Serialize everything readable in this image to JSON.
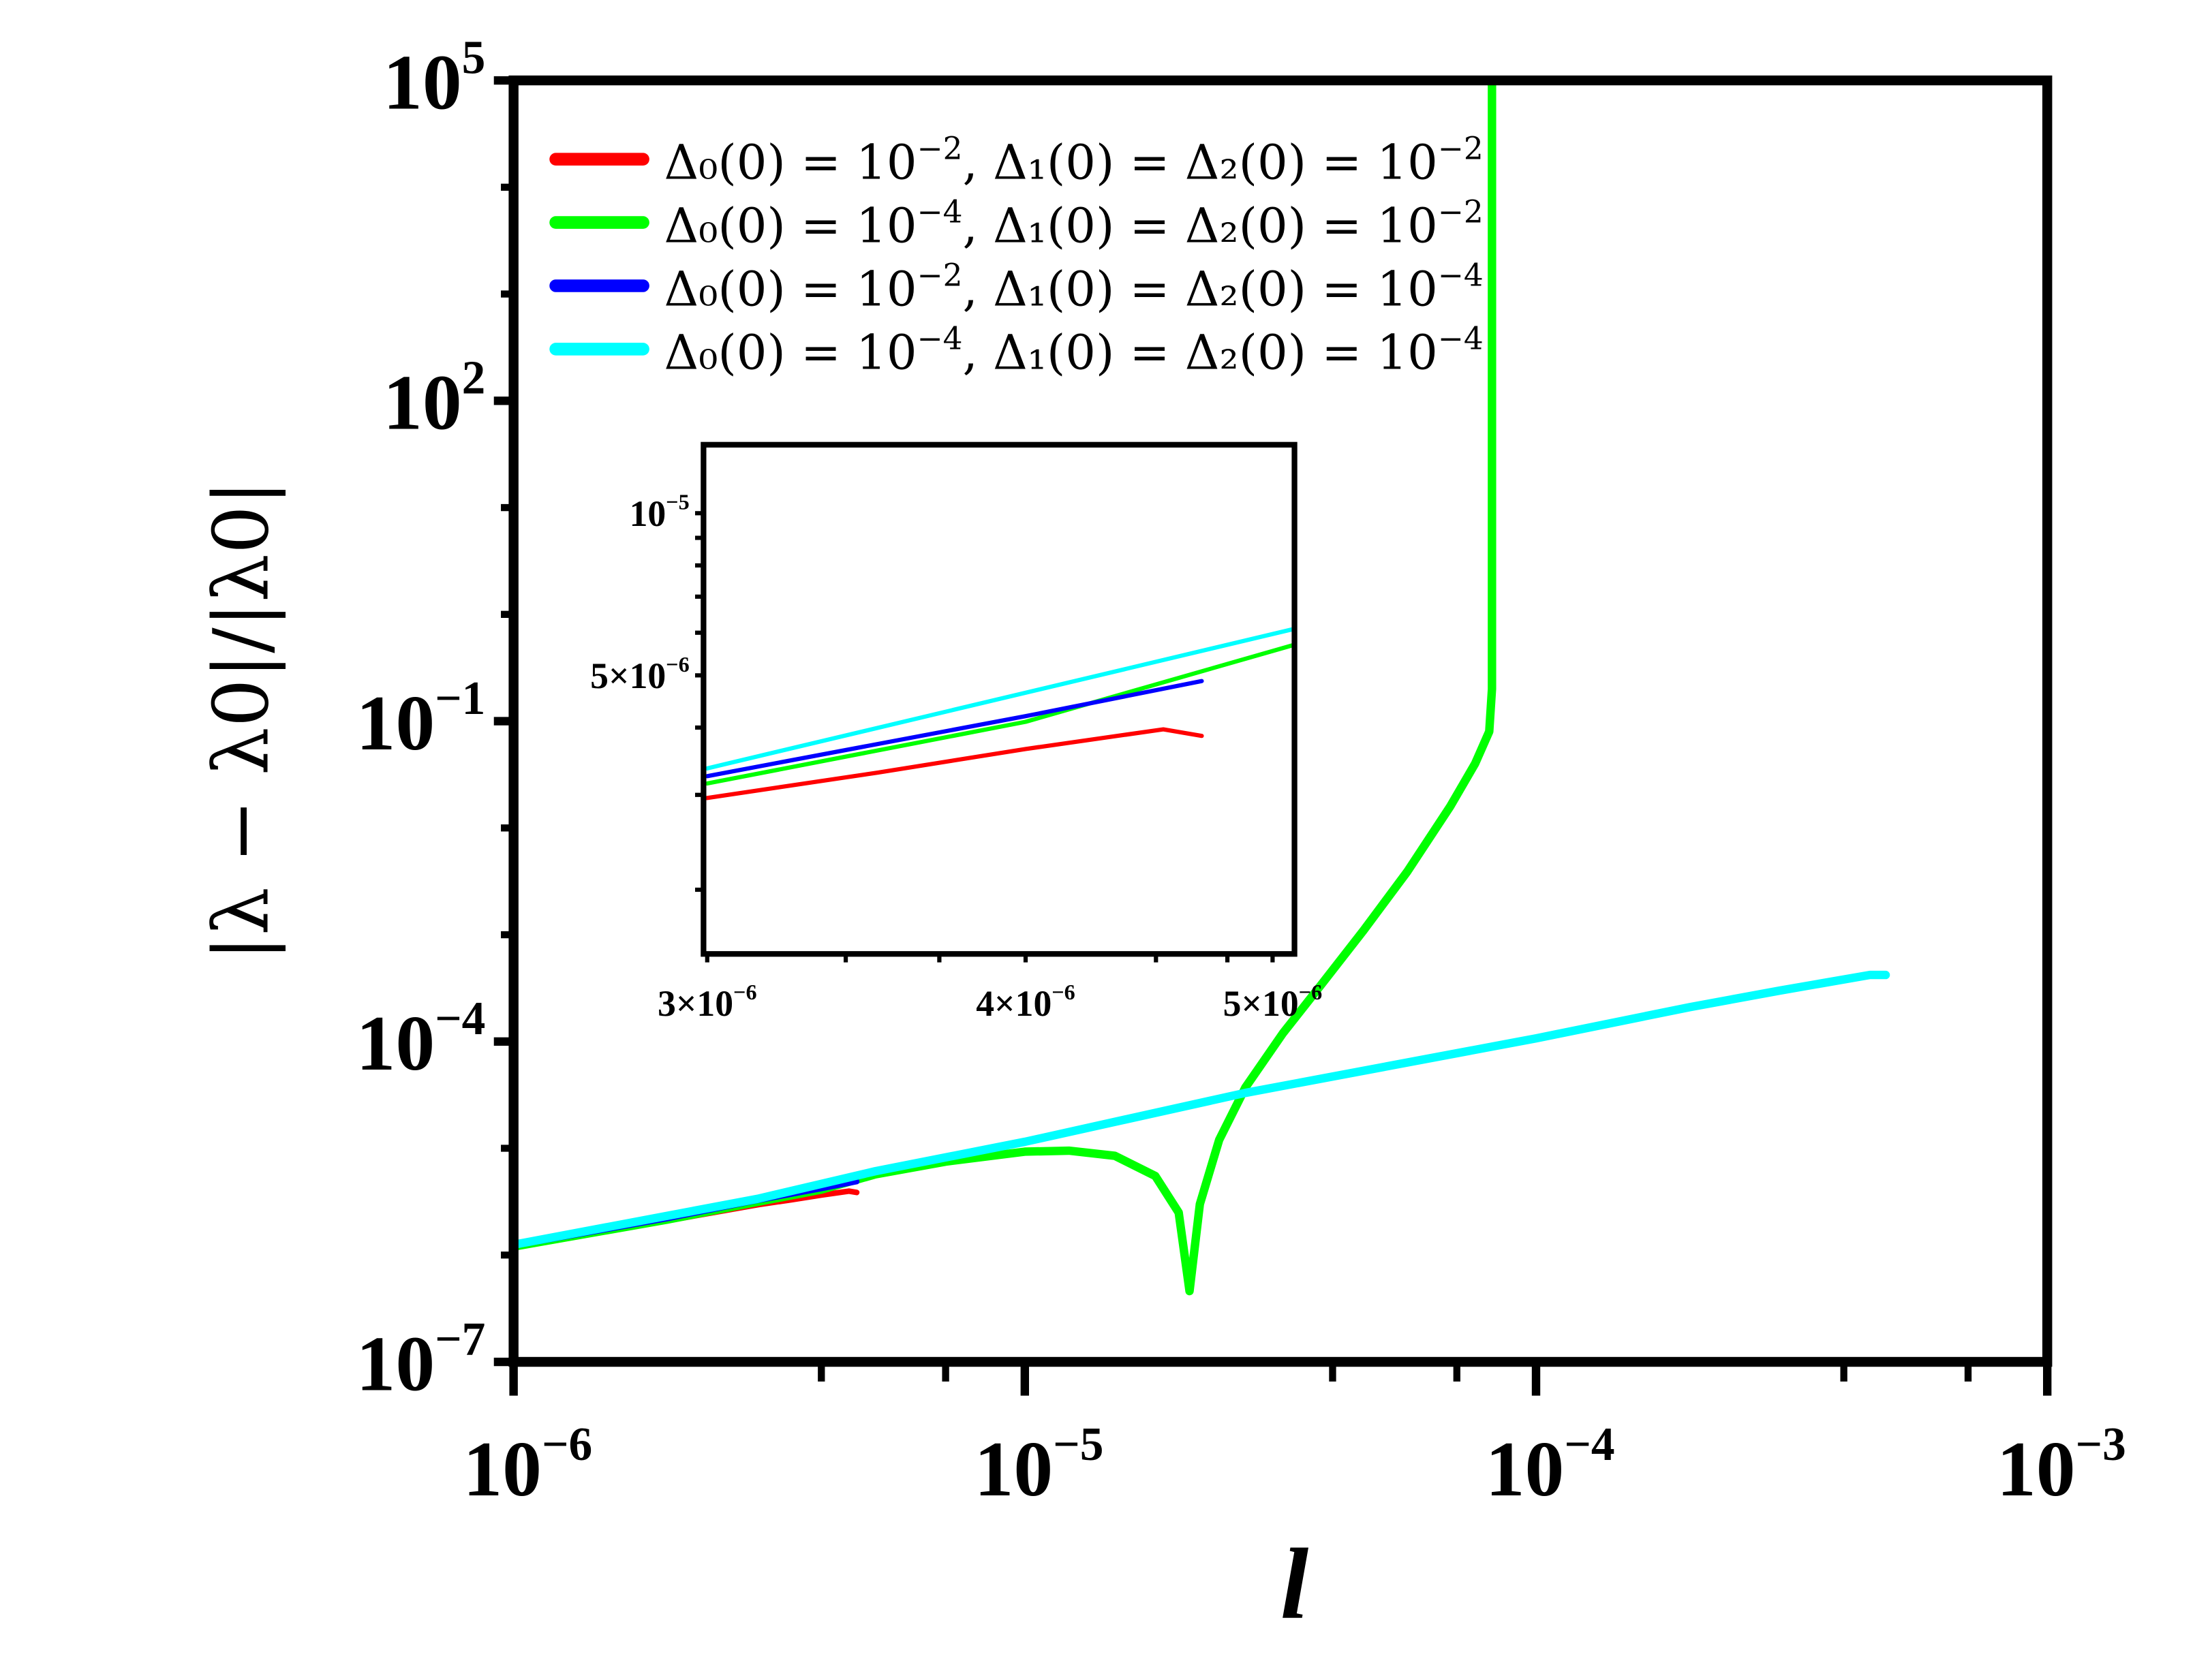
{
  "chart_data": {
    "type": "line",
    "xlabel": "l",
    "ylabel": "|λ − λ0|/|λ0|",
    "xscale": "log",
    "yscale": "log",
    "xlim": [
      1e-06,
      0.001
    ],
    "ylim": [
      1e-07,
      100000.0
    ],
    "x_ticks": [
      {
        "v": 1e-06,
        "base": "10",
        "exp": "−6"
      },
      {
        "v": 1e-05,
        "base": "10",
        "exp": "−5"
      },
      {
        "v": 0.0001,
        "base": "10",
        "exp": "−4"
      },
      {
        "v": 0.001,
        "base": "10",
        "exp": "−3"
      }
    ],
    "y_ticks": [
      {
        "v": 100000.0,
        "base": "10",
        "exp": "5"
      },
      {
        "v": 100.0,
        "base": "10",
        "exp": "2"
      },
      {
        "v": 0.1,
        "base": "10",
        "exp": "−1"
      },
      {
        "v": 0.0001,
        "base": "10",
        "exp": "−4"
      },
      {
        "v": 1e-07,
        "base": "10",
        "exp": "−7"
      }
    ],
    "legend_position": "top-left",
    "series": [
      {
        "name": "Δ0(0) = 10^-2, Δ1(0) = Δ2(0) = 10^-2",
        "label": {
          "a": "10",
          "ae": "−2",
          "b": "10",
          "be": "−2"
        },
        "color": "#ff0000",
        "x": [
          1e-06,
          2e-06,
          3e-06,
          3.5e-06,
          4e-06,
          4.53e-06,
          4.69e-06
        ],
        "y": [
          1.2e-06,
          2.1e-06,
          2.96e-06,
          3.3e-06,
          3.65e-06,
          3.97e-06,
          3.86e-06
        ]
      },
      {
        "name": "Δ0(0) = 10^-4, Δ1(0) = Δ2(0) = 10^-2",
        "label": {
          "a": "10",
          "ae": "−4",
          "b": "10",
          "be": "−2"
        },
        "color": "#00ff00",
        "x": [
          1e-06,
          2e-06,
          3e-06,
          4e-06,
          5.1e-06,
          7e-06,
          1e-05,
          1.22e-05,
          1.5e-05,
          1.8e-05,
          2e-05,
          2.1e-05,
          2.2e-05,
          2.4e-05,
          2.7e-05,
          3.2e-05,
          3.8e-05,
          4.6e-05,
          5.6e-05,
          6.8e-05,
          7.6e-05,
          8.1e-05,
          8.2e-05,
          8.2e-05
        ],
        "y": [
          1.2e-06,
          2.15e-06,
          3.15e-06,
          4.1e-06,
          5.7e-06,
          7.5e-06,
          9.3e-06,
          9.5e-06,
          8.5e-06,
          5.5e-06,
          2.5e-06,
          4.6e-07,
          3e-06,
          1.2e-05,
          3.7e-05,
          0.00012,
          0.00034,
          0.0011,
          0.0039,
          0.016,
          0.04,
          0.08,
          0.2,
          100000.0
        ]
      },
      {
        "name": "Δ0(0) = 10^-2, Δ1(0) = Δ2(0) = 10^-4",
        "label": {
          "a": "10",
          "ae": "−2",
          "b": "10",
          "be": "−4"
        },
        "color": "#0000ff",
        "x": [
          1e-06,
          2e-06,
          3e-06,
          4e-06,
          4.69e-06
        ],
        "y": [
          1.22e-06,
          2.2e-06,
          3.25e-06,
          4.2e-06,
          4.88e-06
        ]
      },
      {
        "name": "Δ0(0) = 10^-4, Δ1(0) = Δ2(0) = 10^-4",
        "label": {
          "a": "10",
          "ae": "−4",
          "b": "10",
          "be": "−4"
        },
        "color": "#00ffff",
        "x": [
          1e-06,
          3e-06,
          5.1e-06,
          1e-05,
          2.7e-05,
          0.0001,
          0.0002,
          0.0003,
          0.00045,
          0.000483
        ],
        "y": [
          1.25e-06,
          3.36e-06,
          6.1e-06,
          1.15e-05,
          3.3e-05,
          0.000107,
          0.00021,
          0.0003,
          0.00042,
          0.00042
        ]
      }
    ],
    "inset": {
      "xscale": "log",
      "yscale": "log",
      "xlim": [
        2.99e-06,
        5.1e-06
      ],
      "ylim": [
        1.52e-06,
        1.34e-05
      ],
      "x_ticks": [
        {
          "v": 3e-06,
          "m": "3×",
          "base": "10",
          "exp": "−6"
        },
        {
          "v": 4e-06,
          "m": "4×",
          "base": "10",
          "exp": "−6"
        },
        {
          "v": 5e-06,
          "m": "5×",
          "base": "10",
          "exp": "−6"
        }
      ],
      "y_ticks": [
        {
          "v": 1e-05,
          "m": "",
          "base": "10",
          "exp": "−5"
        },
        {
          "v": 5e-06,
          "m": "5×",
          "base": "10",
          "exp": "−6"
        }
      ]
    }
  }
}
